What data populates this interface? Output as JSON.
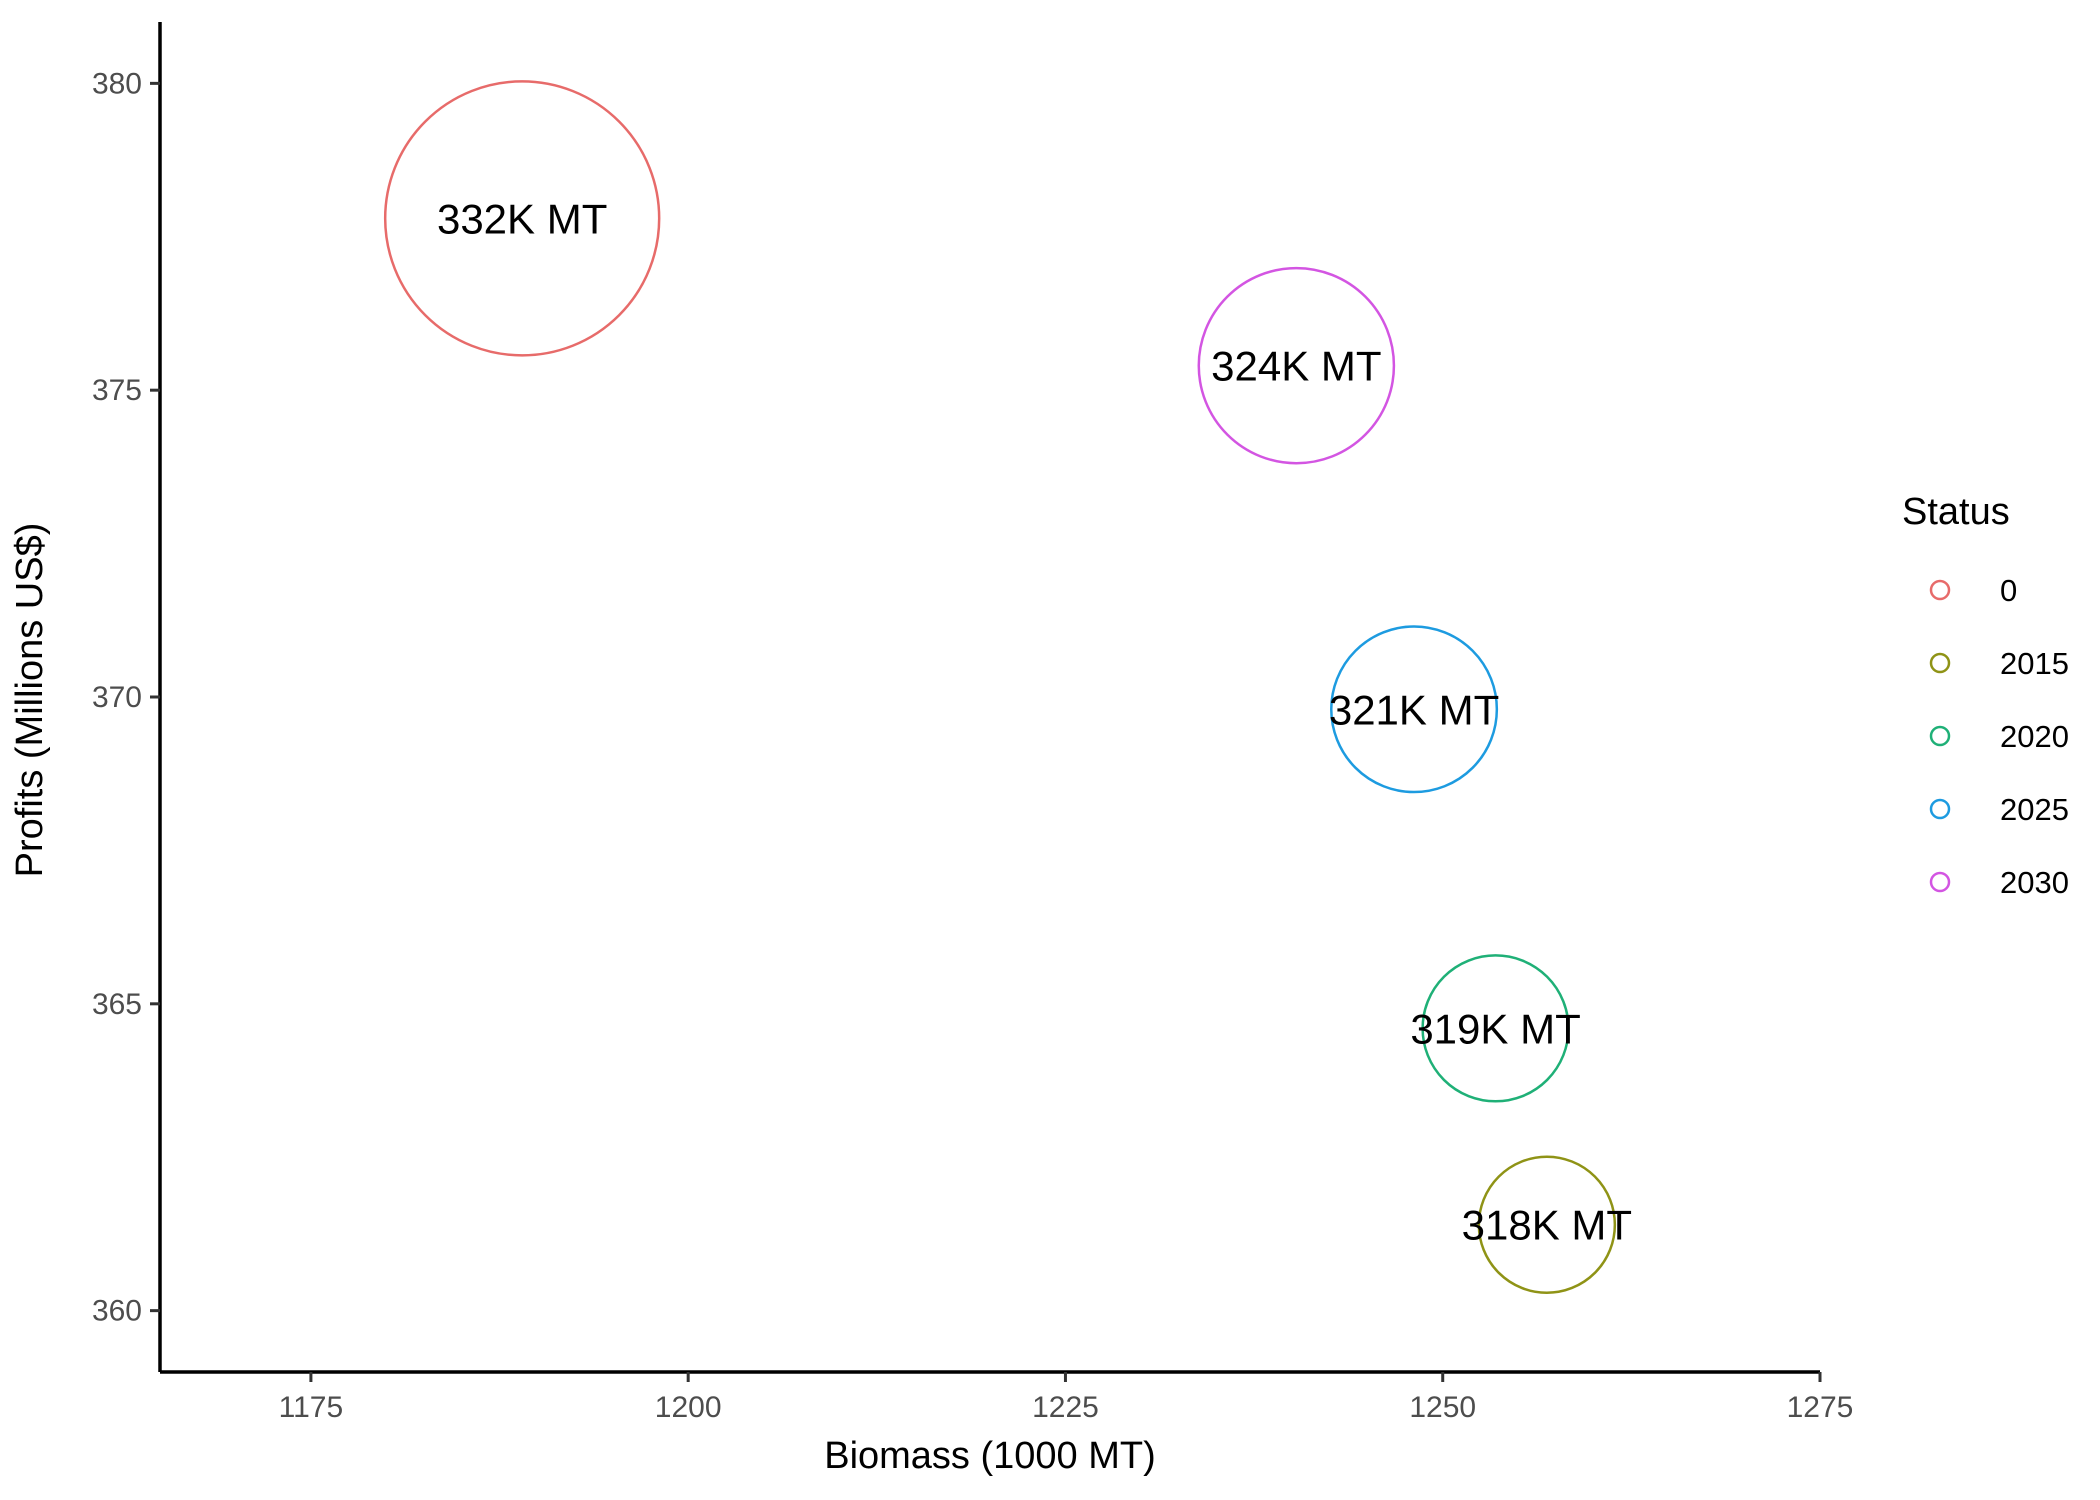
{
  "chart_data": {
    "type": "scatter",
    "xlabel": "Biomass (1000 MT)",
    "ylabel": "Profits (Millions US$)",
    "xlim": [
      1165,
      1275
    ],
    "ylim": [
      359,
      381
    ],
    "x_ticks": [
      1175,
      1200,
      1225,
      1250,
      1275
    ],
    "y_ticks": [
      360,
      365,
      370,
      375,
      380
    ],
    "grid": false,
    "legend": {
      "title": "Status",
      "placement": "right",
      "entries": [
        {
          "label": "0",
          "color": "#E76B6A"
        },
        {
          "label": "2015",
          "color": "#8F9316"
        },
        {
          "label": "2020",
          "color": "#1FB077"
        },
        {
          "label": "2025",
          "color": "#1D9BE0"
        },
        {
          "label": "2030",
          "color": "#D355E2"
        }
      ]
    },
    "points": [
      {
        "status": "0",
        "x": 1189,
        "y": 377.8,
        "size": 332,
        "label": "332K MT",
        "color": "#E76B6A"
      },
      {
        "status": "2030",
        "x": 1240.3,
        "y": 375.4,
        "size": 324,
        "label": "324K MT",
        "color": "#D355E2"
      },
      {
        "status": "2025",
        "x": 1248.1,
        "y": 369.8,
        "size": 321,
        "label": "321K MT",
        "color": "#1D9BE0"
      },
      {
        "status": "2020",
        "x": 1253.5,
        "y": 364.6,
        "size": 319,
        "label": "319K MT",
        "color": "#1FB077"
      },
      {
        "status": "2015",
        "x": 1256.9,
        "y": 361.4,
        "size": 318,
        "label": "318K MT",
        "color": "#8F9316"
      }
    ]
  }
}
